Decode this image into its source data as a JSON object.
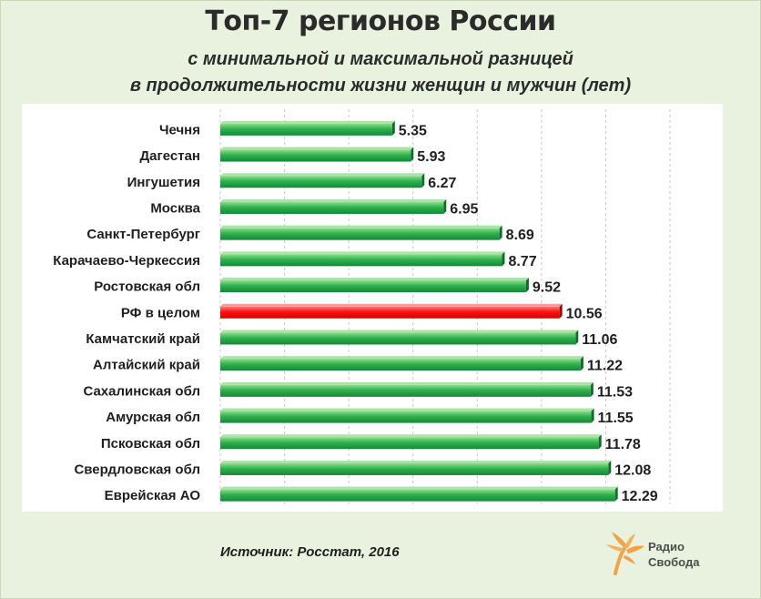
{
  "title": "Топ-7 регионов России",
  "subtitle_line1": "с минимальной и максимальной разницей",
  "subtitle_line2": "в продолжительности жизни женщин и мужчин (лет)",
  "source": "Источник: Росстат, 2016",
  "logo": {
    "line1": "Радио",
    "line2": "Свобода",
    "icon": "radio-svoboda-logo-icon"
  },
  "colors": {
    "bar_default": "#21a343",
    "bar_highlight": "#ff0000",
    "background": "#e9f2df"
  },
  "chart_data": {
    "type": "bar",
    "orientation": "horizontal",
    "title": "Топ-7 регионов России",
    "subtitle": "с минимальной и максимальной разницей в продолжительности жизни женщин и мужчин (лет)",
    "xlabel": "",
    "ylabel": "",
    "xlim": [
      0,
      14
    ],
    "grid": "vertical",
    "categories": [
      "Чечня",
      "Дагестан",
      "Ингушетия",
      "Москва",
      "Санкт-Петербург",
      "Карачаево-Черкессия",
      "Ростовская обл",
      "РФ в целом",
      "Камчатский край",
      "Алтайский край",
      "Сахалинская обл",
      "Амурская обл",
      "Псковская обл",
      "Свердловская обл",
      "Еврейская АО"
    ],
    "values": [
      5.35,
      5.93,
      6.27,
      6.95,
      8.69,
      8.77,
      9.52,
      10.56,
      11.06,
      11.22,
      11.53,
      11.55,
      11.78,
      12.08,
      12.29
    ],
    "value_labels": [
      "5.35",
      "5.93",
      "6.27",
      "6.95",
      "8.69",
      "8.77",
      "9.52",
      "10.56",
      "11.06",
      "11.22",
      "11.53",
      "11.55",
      "11.78",
      "12.08",
      "12.29"
    ],
    "highlight": "РФ в целом"
  }
}
